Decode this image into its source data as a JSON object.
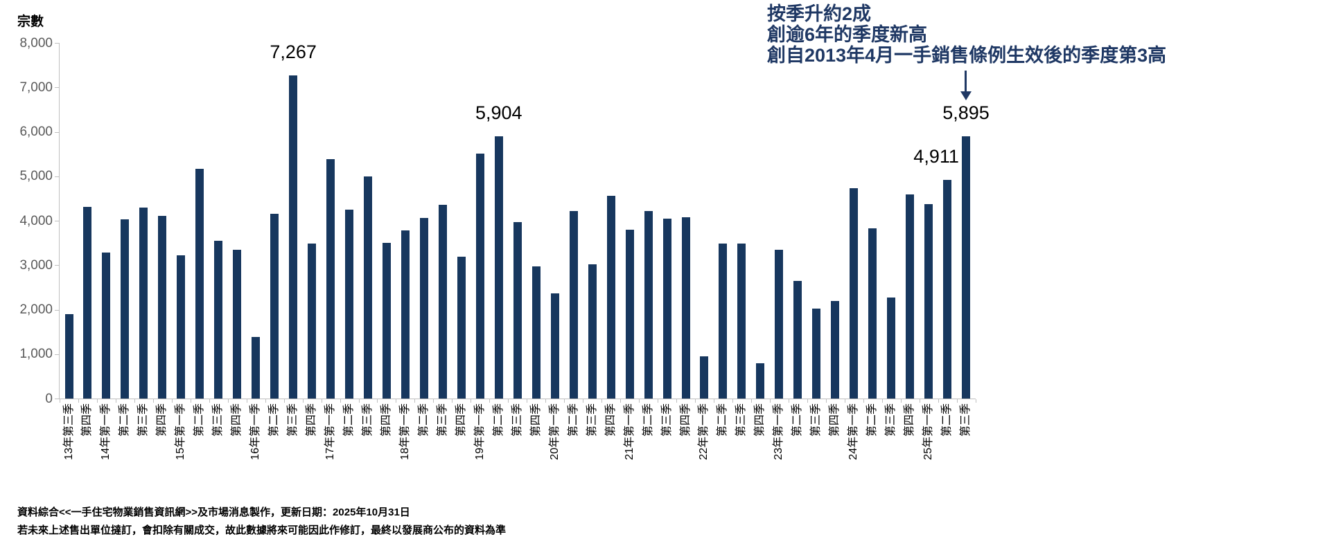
{
  "y_axis_title": "宗數",
  "annotation": {
    "lines": [
      "按季升約2成",
      "創逾6年的季度新高",
      "創自2013年4月一手銷售條例生效後的季度第3高"
    ]
  },
  "footer": {
    "line1": "資料綜合<<一手住宅物業銷售資訊網>>及市場消息製作，更新日期：2025年10月31日",
    "line2": "若未來上述售出單位撻訂，會扣除有關成交，故此數據將來可能因此作修訂，最終以發展商公布的資料為準"
  },
  "colors": {
    "bar": "#17375E",
    "annotation_text": "#1F3864",
    "axis_line": "#BFBFBF",
    "y_tick_label": "#595959",
    "x_tick_label": "#000000",
    "data_label": "#000000"
  },
  "chart_data": {
    "type": "bar",
    "title": "宗數",
    "xlabel": "",
    "ylabel": "宗數",
    "ylim": [
      0,
      8000
    ],
    "y_tick_step": 1000,
    "y_tick_labels": [
      "0",
      "1,000",
      "2,000",
      "3,000",
      "4,000",
      "5,000",
      "6,000",
      "7,000",
      "8,000"
    ],
    "grid": false,
    "legend": "none",
    "categories": [
      "13年第三季",
      "第四季",
      "14年第一季",
      "第二季",
      "第三季",
      "第四季",
      "15年第一季",
      "第二季",
      "第三季",
      "第四季",
      "16年第一季",
      "第二季",
      "第三季",
      "第四季",
      "17年第一季",
      "第二季",
      "第三季",
      "第四季",
      "18年第一季",
      "第二季",
      "第三季",
      "第四季",
      "19年第一季",
      "第二季",
      "第三季",
      "第四季",
      "20年第一季",
      "第二季",
      "第三季",
      "第四季",
      "21年第一季",
      "第二季",
      "第三季",
      "第四季",
      "22年第一季",
      "第二季",
      "第三季",
      "第四季",
      "23年第一季",
      "第二季",
      "第三季",
      "第四季",
      "24年第一季",
      "第二季",
      "第三季",
      "第四季",
      "25年第一季",
      "第二季",
      "第三季"
    ],
    "values": [
      1900,
      4310,
      3280,
      4030,
      4300,
      4110,
      3220,
      5170,
      3550,
      3350,
      1390,
      4160,
      7267,
      3490,
      5390,
      4250,
      5000,
      3500,
      3780,
      4060,
      4360,
      3190,
      5510,
      5904,
      3970,
      2970,
      2370,
      4220,
      3020,
      4560,
      3800,
      4220,
      4040,
      4080,
      950,
      3490,
      3490,
      800,
      3340,
      2650,
      2020,
      2190,
      4730,
      3830,
      2270,
      4590,
      4370,
      4911,
      5895
    ],
    "data_labels": [
      {
        "category": "16年第三季",
        "index": 12,
        "label": "7,267",
        "value": 7267,
        "x_offset": 0
      },
      {
        "category": "19年第二季",
        "index": 23,
        "label": "5,904",
        "value": 5904,
        "x_offset": 0
      },
      {
        "category": "25年第二季",
        "index": 47,
        "label": "4,911",
        "value": 4911,
        "x_offset": -16
      },
      {
        "category": "25年第三季",
        "index": 48,
        "label": "5,895",
        "value": 5895,
        "x_offset": 0
      }
    ]
  }
}
